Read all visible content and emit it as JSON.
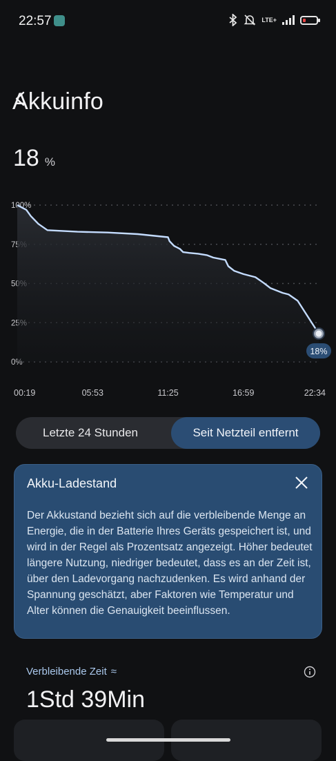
{
  "status_bar": {
    "time": "22:57",
    "network": "LTE+",
    "icons": [
      "bluetooth-icon",
      "bell-off-icon",
      "signal-icon",
      "battery-icon"
    ]
  },
  "header": {
    "title": "Akkuinfo"
  },
  "battery": {
    "level": "18",
    "unit": "%"
  },
  "chart_data": {
    "type": "area",
    "y_ticks": [
      "100%",
      "75%",
      "50%",
      "25%",
      "0%"
    ],
    "x_ticks": [
      "00:19",
      "05:53",
      "11:25",
      "16:59",
      "22:34"
    ],
    "ylim": [
      0,
      100
    ],
    "current_label": "18%",
    "series": [
      {
        "x_fraction": [
          0.0,
          0.03,
          0.045,
          0.07,
          0.1,
          0.2,
          0.3,
          0.4,
          0.5,
          0.505,
          0.52,
          0.54,
          0.55,
          0.57,
          0.6,
          0.63,
          0.65,
          0.69,
          0.7,
          0.72,
          0.75,
          0.79,
          0.82,
          0.84,
          0.88,
          0.9,
          0.93,
          0.96,
          1.0
        ],
        "values": [
          100,
          97,
          93,
          88,
          84,
          83,
          82.5,
          81.5,
          79.5,
          77,
          74,
          72,
          70,
          69.5,
          69,
          68,
          66.5,
          65,
          61,
          58,
          56,
          54,
          50,
          47,
          44,
          43,
          39,
          30,
          18
        ]
      }
    ]
  },
  "period_tabs": {
    "left": "Letzte 24 Stunden",
    "right": "Seit Netzteil entfernt",
    "selected": "right"
  },
  "info_card": {
    "title": "Akku-Ladestand",
    "body": "Der Akkustand bezieht sich auf die verbleibende Menge an Energie, die in der Batterie Ihres Geräts gespeichert ist, und wird in der Regel als Prozentsatz angezeigt. Höher bedeutet längere Nutzung, niedriger bedeutet, dass es an der Zeit ist, über den Ladevorgang nachzudenken. Es wird anhand der Spannung geschätzt, aber Faktoren wie Temperatur und Alter können die Genauigkeit beeinflussen."
  },
  "remaining": {
    "label": "Verbleibende Zeit",
    "approx": "≈",
    "value": "1Std 39Min"
  },
  "colors": {
    "background": "#101113",
    "accent": "#2b4d74",
    "line": "#c4dcff",
    "battery_low": "#e84545"
  }
}
